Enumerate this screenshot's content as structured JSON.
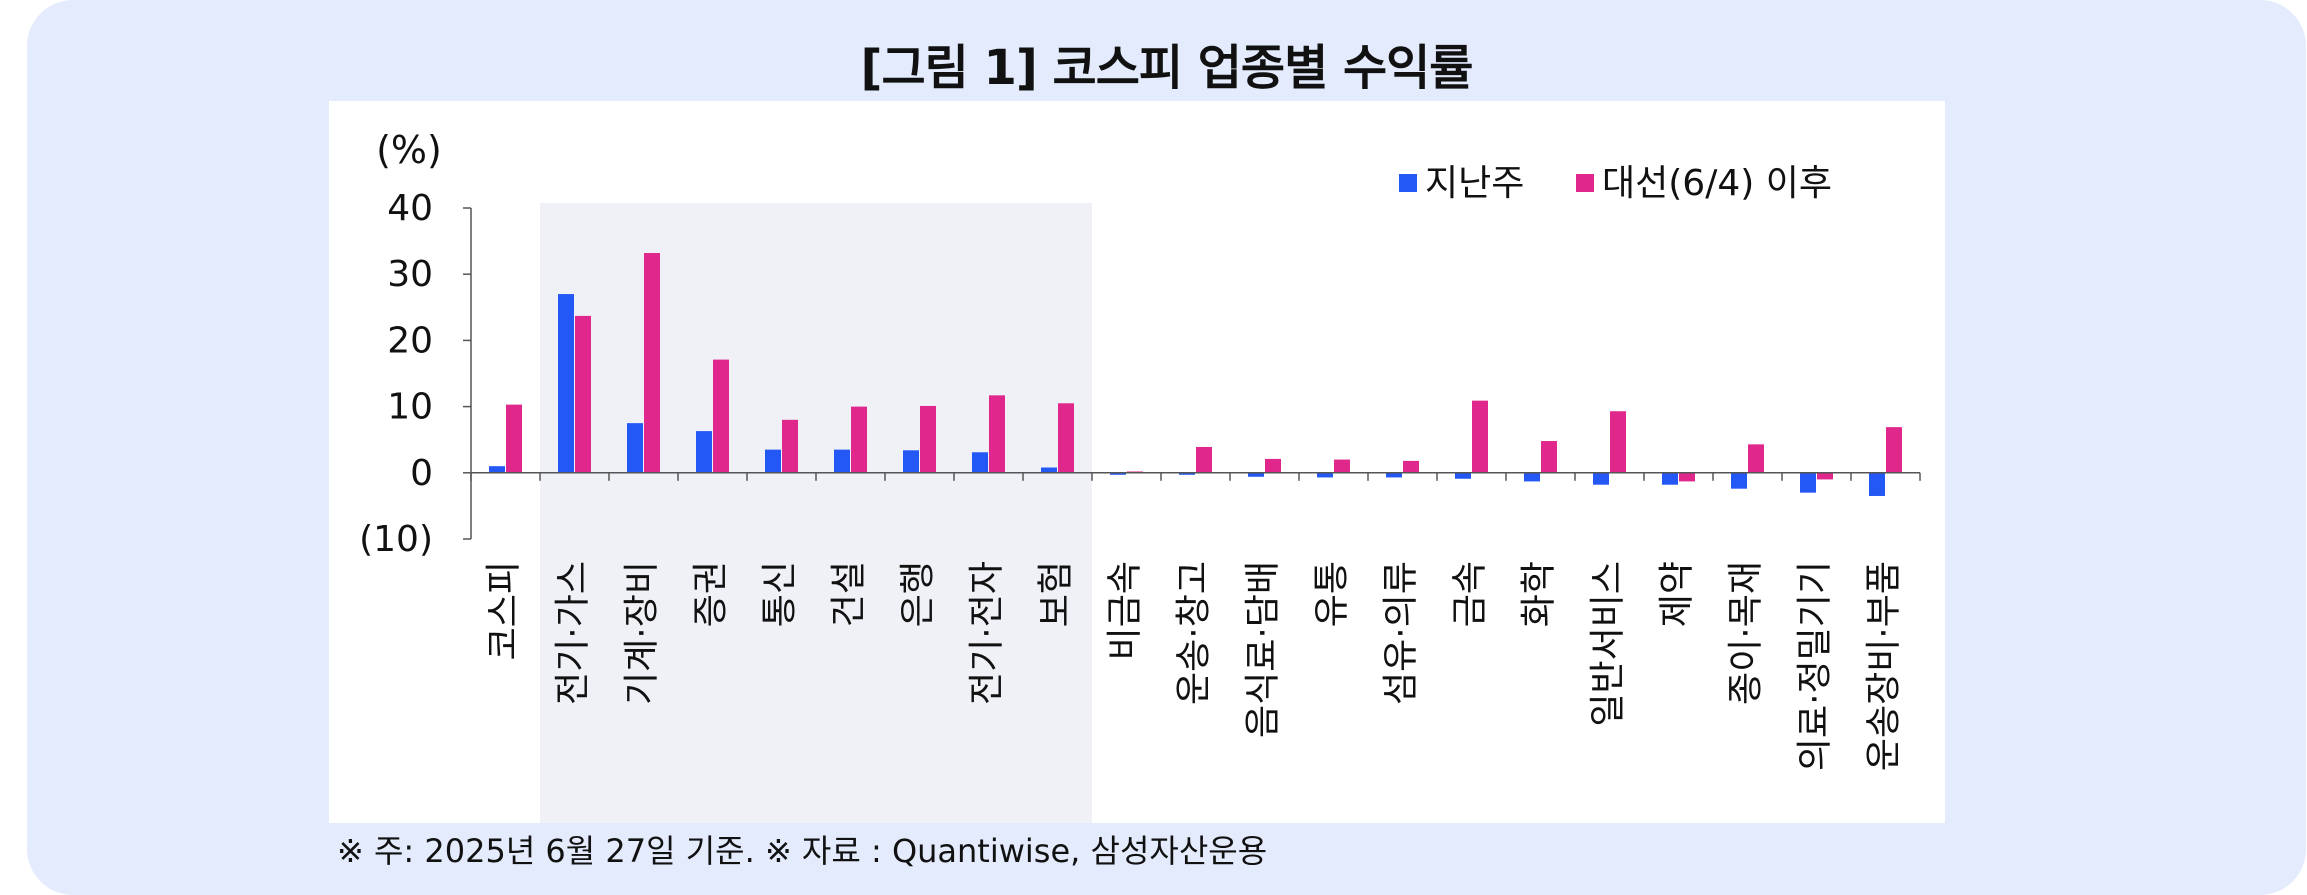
{
  "figure": {
    "title": "[그림 1] 코스피 업종별 수익률",
    "footnote": "※ 주: 2025년 6월 27일 기준. ※ 자료 : Quantiwise, 삼성자산운용"
  },
  "colors": {
    "panel_background": "#e3ebfd",
    "highlight_band": "#f0f1f6",
    "series_last_week": "#2458f5",
    "series_since_election": "#e0278c"
  },
  "chart_data": {
    "type": "bar",
    "yunit": "(%)",
    "ylim": [
      -10,
      40
    ],
    "yticks": [
      40,
      30,
      20,
      10,
      0,
      -10
    ],
    "ytick_labels": [
      "40",
      "30",
      "20",
      "10",
      "0",
      "(10)"
    ],
    "legend_position": "top-right",
    "highlighted_categories": [
      "전기·가스",
      "기계·장비",
      "증권",
      "통신",
      "건설",
      "은행",
      "전기·전자",
      "보험"
    ],
    "categories": [
      "코스피",
      "전기·가스",
      "기계·장비",
      "증권",
      "통신",
      "건설",
      "은행",
      "전기·전자",
      "보험",
      "비금속",
      "운송·창고",
      "음식료·담배",
      "유통",
      "섬유·의류",
      "금속",
      "화학",
      "일반서비스",
      "제약",
      "종이·목재",
      "의료·정밀기기",
      "운송장비·부품"
    ],
    "series": [
      {
        "name": "지난주",
        "values": [
          1.0,
          27.0,
          7.5,
          6.3,
          3.5,
          3.5,
          3.4,
          3.1,
          0.8,
          -0.3,
          -0.3,
          -0.6,
          -0.7,
          -0.7,
          -0.9,
          -1.3,
          -1.8,
          -1.8,
          -2.4,
          -3.0,
          -3.5
        ]
      },
      {
        "name": "대선(6/4) 이후",
        "values": [
          10.3,
          23.7,
          33.2,
          17.1,
          8.0,
          10.0,
          10.1,
          11.7,
          10.5,
          0.2,
          3.9,
          2.1,
          2.0,
          1.8,
          10.9,
          4.8,
          9.3,
          -1.3,
          4.3,
          -1.0,
          6.9
        ]
      }
    ]
  }
}
